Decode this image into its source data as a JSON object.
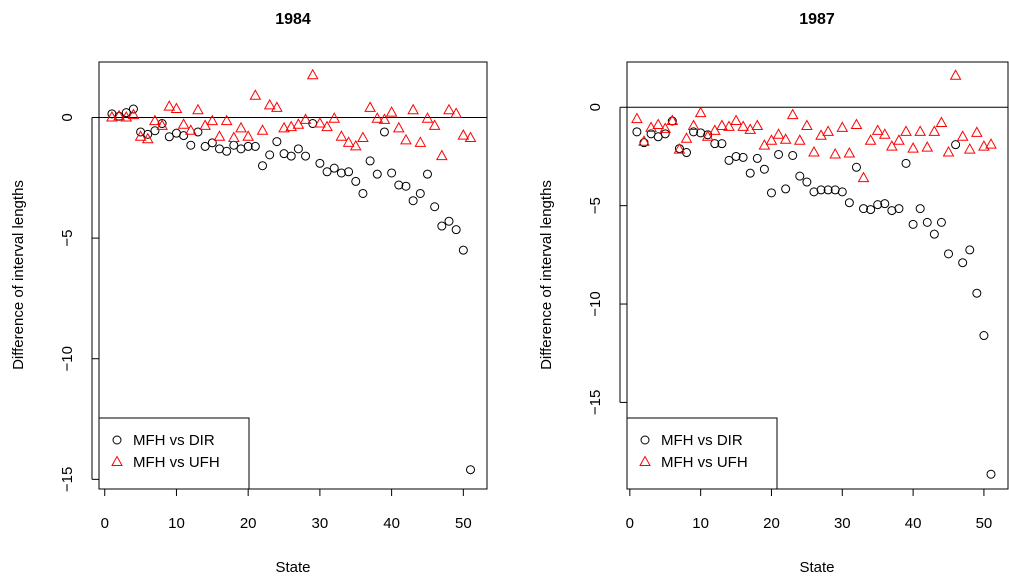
{
  "chart_data": [
    {
      "type": "scatter",
      "title": "1984",
      "xlabel": "State",
      "ylabel": "Difference of interval lengths",
      "xlim": [
        -0.8,
        53.3
      ],
      "ylim": [
        -15.4,
        2.3
      ],
      "xticks": [
        0,
        10,
        20,
        30,
        40,
        50
      ],
      "yticks": [
        0,
        -5,
        -10,
        -15
      ],
      "reference_line_y": 0,
      "legend_position": "bottom-left",
      "series": [
        {
          "name": "MFH vs DIR",
          "marker": "circle",
          "color": "#000000",
          "x": [
            1,
            2,
            3,
            4,
            5,
            6,
            7,
            8,
            9,
            10,
            11,
            12,
            13,
            14,
            15,
            16,
            17,
            18,
            19,
            20,
            21,
            22,
            23,
            24,
            25,
            26,
            27,
            28,
            29,
            30,
            31,
            32,
            33,
            34,
            35,
            36,
            37,
            38,
            39,
            40,
            41,
            42,
            43,
            44,
            45,
            46,
            47,
            48,
            49,
            50,
            51
          ],
          "y": [
            0.15,
            0.05,
            0.2,
            0.35,
            -0.6,
            -0.7,
            -0.55,
            -0.25,
            -0.8,
            -0.65,
            -0.75,
            -1.15,
            -0.6,
            -1.2,
            -1.05,
            -1.3,
            -1.4,
            -1.15,
            -1.3,
            -1.2,
            -1.2,
            -2.0,
            -1.55,
            -1.0,
            -1.5,
            -1.6,
            -1.3,
            -1.6,
            -0.25,
            -1.9,
            -2.25,
            -2.1,
            -2.3,
            -2.25,
            -2.65,
            -3.15,
            -1.8,
            -2.35,
            -0.6,
            -2.3,
            -2.8,
            -2.85,
            -3.45,
            -3.15,
            -2.35,
            -3.7,
            -4.5,
            -4.3,
            -4.65,
            -5.5,
            -14.6
          ]
        },
        {
          "name": "MFH vs UFH",
          "marker": "triangle",
          "color": "#ff0000",
          "x": [
            1,
            2,
            3,
            4,
            5,
            6,
            7,
            8,
            9,
            10,
            11,
            12,
            13,
            14,
            15,
            16,
            17,
            18,
            19,
            20,
            21,
            22,
            23,
            24,
            25,
            26,
            27,
            28,
            29,
            30,
            31,
            32,
            33,
            34,
            35,
            36,
            37,
            38,
            39,
            40,
            41,
            42,
            43,
            44,
            45,
            46,
            47,
            48,
            49,
            50,
            51
          ],
          "y": [
            0.0,
            0.05,
            0.0,
            0.1,
            -0.8,
            -0.9,
            -0.15,
            -0.35,
            0.45,
            0.35,
            -0.3,
            -0.55,
            0.3,
            -0.35,
            -0.15,
            -0.8,
            -0.15,
            -0.85,
            -0.45,
            -0.8,
            0.9,
            -0.55,
            0.5,
            0.4,
            -0.45,
            -0.4,
            -0.3,
            -0.1,
            1.75,
            -0.25,
            -0.4,
            -0.05,
            -0.8,
            -1.05,
            -1.2,
            -0.85,
            0.4,
            -0.05,
            -0.1,
            0.2,
            -0.45,
            -0.95,
            0.3,
            -1.05,
            -0.05,
            -0.35,
            -1.6,
            0.3,
            0.15,
            -0.75,
            -0.85
          ]
        }
      ]
    },
    {
      "type": "scatter",
      "title": "1987",
      "xlabel": "State",
      "ylabel": "Difference of interval lengths",
      "xlim": [
        -0.4,
        53.4
      ],
      "ylim": [
        -19.4,
        2.3
      ],
      "xticks": [
        0,
        10,
        20,
        30,
        40,
        50
      ],
      "yticks": [
        0,
        -5,
        -10,
        -15
      ],
      "reference_line_y": 0,
      "legend_position": "bottom-left",
      "series": [
        {
          "name": "MFH vs DIR",
          "marker": "circle",
          "color": "#000000",
          "x": [
            1,
            2,
            3,
            4,
            5,
            6,
            7,
            8,
            9,
            10,
            11,
            12,
            13,
            14,
            15,
            16,
            17,
            18,
            19,
            20,
            21,
            22,
            23,
            24,
            25,
            26,
            27,
            28,
            29,
            30,
            31,
            32,
            33,
            34,
            35,
            36,
            37,
            38,
            39,
            40,
            41,
            42,
            43,
            44,
            45,
            46,
            47,
            48,
            49,
            50,
            51
          ],
          "y": [
            -1.25,
            -1.8,
            -1.35,
            -1.5,
            -1.35,
            -0.7,
            -2.1,
            -2.3,
            -1.25,
            -1.3,
            -1.4,
            -1.85,
            -1.85,
            -2.7,
            -2.5,
            -2.55,
            -3.35,
            -2.6,
            -3.15,
            -4.35,
            -2.4,
            -4.15,
            -2.45,
            -3.5,
            -3.8,
            -4.3,
            -4.2,
            -4.2,
            -4.2,
            -4.3,
            -4.85,
            -3.05,
            -5.15,
            -5.2,
            -4.95,
            -4.9,
            -5.25,
            -5.15,
            -2.85,
            -5.95,
            -5.15,
            -5.85,
            -6.45,
            -5.85,
            -7.45,
            -1.9,
            -7.9,
            -7.25,
            -9.45,
            -11.6,
            -18.65
          ]
        },
        {
          "name": "MFH vs UFH",
          "marker": "triangle",
          "color": "#ff0000",
          "x": [
            1,
            2,
            3,
            4,
            5,
            6,
            7,
            8,
            9,
            10,
            11,
            12,
            13,
            14,
            15,
            16,
            17,
            18,
            19,
            20,
            21,
            22,
            23,
            24,
            25,
            26,
            27,
            28,
            29,
            30,
            31,
            32,
            33,
            34,
            35,
            36,
            37,
            38,
            39,
            40,
            41,
            42,
            43,
            44,
            45,
            46,
            47,
            48,
            49,
            50,
            51
          ],
          "y": [
            -0.6,
            -1.75,
            -1.05,
            -0.9,
            -1.1,
            -0.7,
            -2.15,
            -1.6,
            -0.95,
            -0.3,
            -1.5,
            -1.2,
            -0.95,
            -1.0,
            -0.7,
            -1.0,
            -1.15,
            -0.95,
            -1.95,
            -1.7,
            -1.4,
            -1.65,
            -0.4,
            -1.7,
            -0.95,
            -2.3,
            -1.45,
            -1.25,
            -2.4,
            -1.05,
            -2.35,
            -0.9,
            -3.6,
            -1.7,
            -1.2,
            -1.4,
            -2.0,
            -1.7,
            -1.25,
            -2.1,
            -1.25,
            -2.05,
            -1.25,
            -0.8,
            -2.3,
            1.6,
            -1.5,
            -2.15,
            -1.3,
            -2.0,
            -1.9
          ]
        }
      ]
    }
  ]
}
